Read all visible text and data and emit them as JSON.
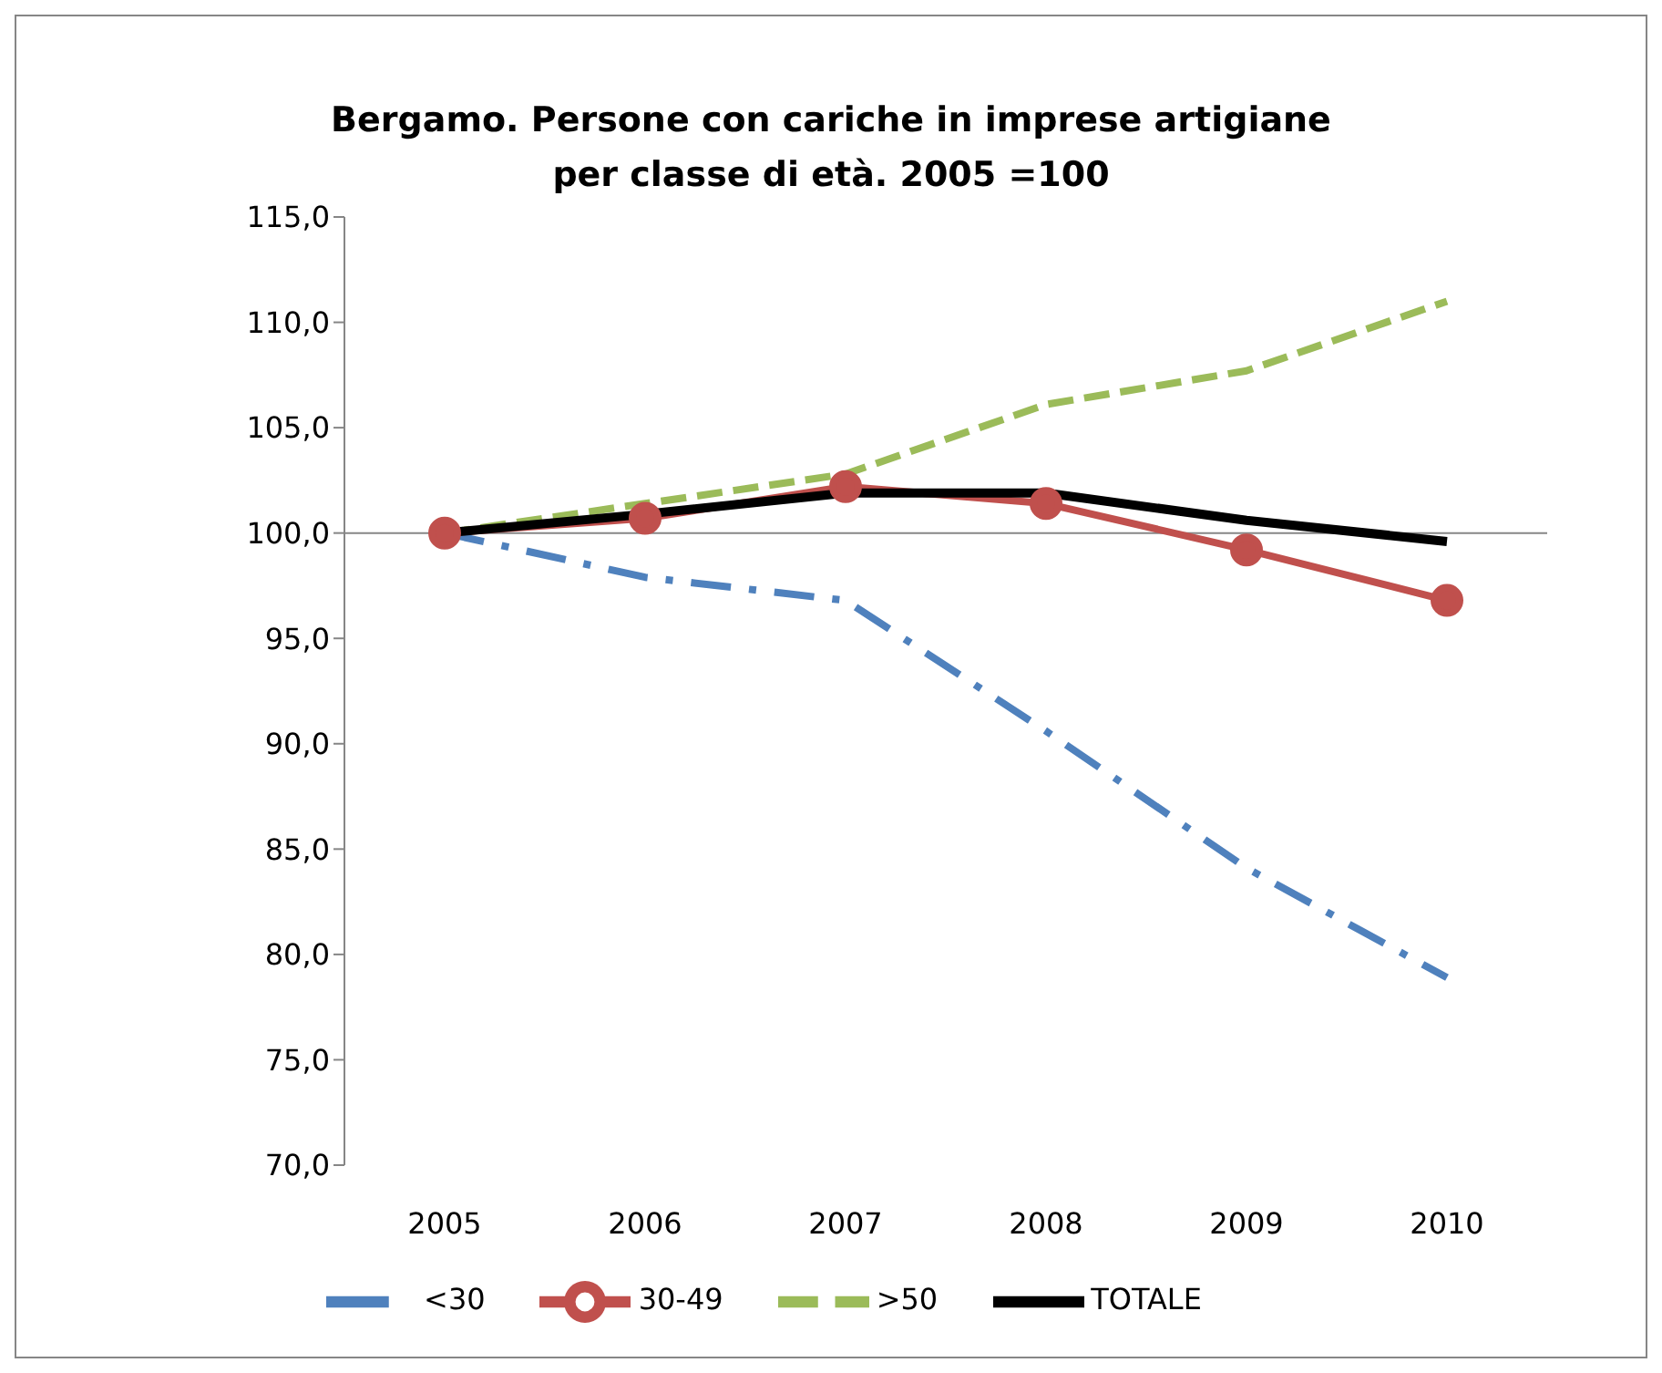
{
  "chart_data": {
    "type": "line",
    "title": "Bergamo. Persone con cariche in imprese artigiane\nper classe di età. 2005 =100",
    "categories": [
      "2005",
      "2006",
      "2007",
      "2008",
      "2009",
      "2010"
    ],
    "series": [
      {
        "name": "<30",
        "color": "#4f81bd",
        "line_style": "dashed",
        "marker": "none",
        "values": [
          100,
          97.9,
          96.8,
          90.6,
          84.1,
          78.9
        ]
      },
      {
        "name": "30-49",
        "color": "#c0504d",
        "line_style": "solid",
        "marker": "circle",
        "values": [
          100,
          100.7,
          102.2,
          101.4,
          99.2,
          96.8
        ]
      },
      {
        "name": ">50",
        "color": "#9bbb59",
        "line_style": "dashed",
        "marker": "none",
        "values": [
          100,
          101.4,
          102.8,
          106.1,
          107.7,
          111.0
        ]
      },
      {
        "name": "TOTALE",
        "color": "#000000",
        "line_style": "solid",
        "marker": "none",
        "values": [
          100,
          100.9,
          101.9,
          101.9,
          100.6,
          99.6
        ]
      }
    ],
    "ylim": [
      70,
      115
    ],
    "yticks": [
      {
        "value": 70,
        "label": "70,0"
      },
      {
        "value": 75,
        "label": "75,0"
      },
      {
        "value": 80,
        "label": "80,0"
      },
      {
        "value": 85,
        "label": "85,0"
      },
      {
        "value": 90,
        "label": "90,0"
      },
      {
        "value": 95,
        "label": "95,0"
      },
      {
        "value": 100,
        "label": "100,0"
      },
      {
        "value": 105,
        "label": "105,0"
      },
      {
        "value": 110,
        "label": "110,0"
      },
      {
        "value": 115,
        "label": "115,0"
      }
    ],
    "ref_lines": [
      {
        "axis": "y",
        "value": 100,
        "color": "#868686"
      }
    ],
    "grid": false,
    "legend": "bottom"
  }
}
